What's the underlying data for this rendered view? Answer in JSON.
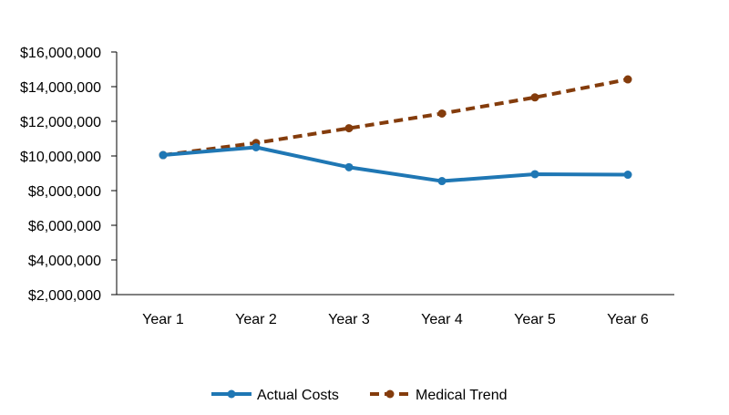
{
  "chart_data": {
    "type": "line",
    "title": "",
    "xlabel": "",
    "ylabel": "",
    "categories": [
      "Year 1",
      "Year 2",
      "Year 3",
      "Year 4",
      "Year 5",
      "Year 6"
    ],
    "ylim": [
      2000000,
      16000000
    ],
    "yticks": [
      2000000,
      4000000,
      6000000,
      8000000,
      10000000,
      12000000,
      14000000,
      16000000
    ],
    "ytick_labels": [
      "$2,000,000",
      "$4,000,000",
      "$6,000,000",
      "$8,000,000",
      "$10,000,000",
      "$12,000,000",
      "$14,000,000",
      "$16,000,000"
    ],
    "grid": false,
    "legend_position": "bottom",
    "series": [
      {
        "name": "Actual Costs",
        "values": [
          10050000,
          10500000,
          9350000,
          8550000,
          8950000,
          8920000
        ],
        "color": "#1f77b4",
        "line_style": "solid",
        "marker": "circle"
      },
      {
        "name": "Medical Trend",
        "values": [
          10050000,
          10750000,
          11600000,
          12450000,
          13380000,
          14420000
        ],
        "color": "#843c0c",
        "line_style": "dashed",
        "marker": "circle"
      }
    ]
  }
}
